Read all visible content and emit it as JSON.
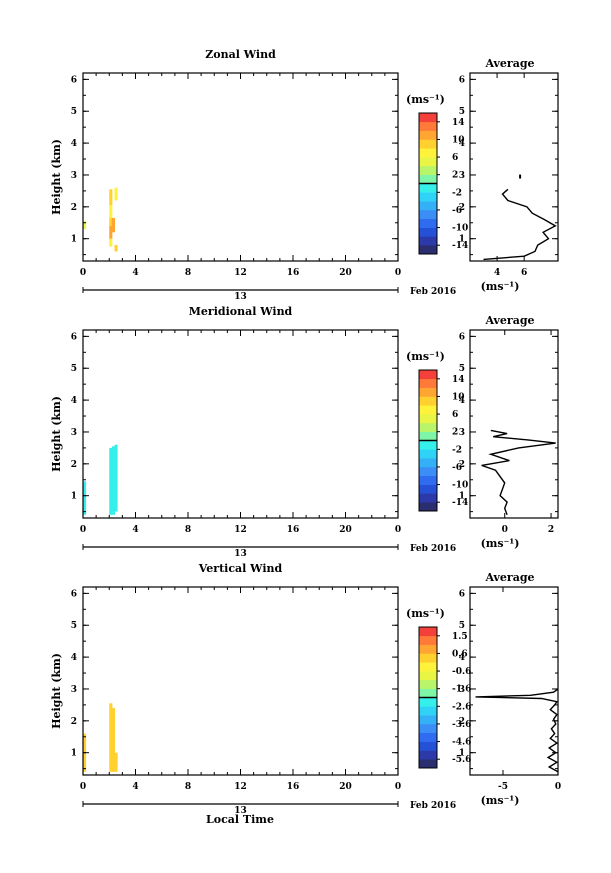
{
  "figure": {
    "date_label": "Feb 2016",
    "date_axis_tick": "13",
    "xlabel": "Local Time",
    "units_label": "(ms⁻¹)",
    "average_title": "Average"
  },
  "chart_data": [
    {
      "type": "heatmap",
      "title": "Zonal Wind",
      "ylabel": "Height (km)",
      "xlim": [
        0,
        24
      ],
      "ylim": [
        0.3,
        6.2
      ],
      "xticks": [
        "0",
        "4",
        "8",
        "12",
        "16",
        "20",
        "0"
      ],
      "yticks": [
        "1",
        "2",
        "3",
        "4",
        "5",
        "6"
      ],
      "colorbar": {
        "range": [
          -15,
          15
        ],
        "ticks": [
          "14",
          "10",
          "6",
          "2",
          "-2",
          "-6",
          "-10",
          "-14"
        ]
      },
      "cells": [
        {
          "x": 0.0,
          "y0": 1.3,
          "y1": 1.55,
          "v": 4
        },
        {
          "x": 2.0,
          "y0": 0.75,
          "y1": 1.0,
          "v": 7
        },
        {
          "x": 2.0,
          "y0": 1.0,
          "y1": 1.4,
          "v": 10
        },
        {
          "x": 2.0,
          "y0": 1.4,
          "y1": 1.65,
          "v": 9
        },
        {
          "x": 2.0,
          "y0": 1.65,
          "y1": 2.05,
          "v": 7
        },
        {
          "x": 2.0,
          "y0": 2.05,
          "y1": 2.55,
          "v": 8
        },
        {
          "x": 2.2,
          "y0": 1.2,
          "y1": 1.65,
          "v": 11
        },
        {
          "x": 2.4,
          "y0": 0.6,
          "y1": 0.8,
          "v": 9
        },
        {
          "x": 2.4,
          "y0": 2.2,
          "y1": 2.6,
          "v": 6
        }
      ],
      "average": {
        "xlim": [
          2,
          8.5
        ],
        "xticks": [
          "4",
          "6"
        ],
        "profile_height": [
          0.35,
          0.45,
          0.6,
          0.8,
          1.0,
          1.2,
          1.4,
          1.6,
          1.8,
          2.0,
          2.2,
          2.4,
          2.55
        ],
        "profile_value": [
          3.0,
          6.0,
          6.8,
          7.0,
          7.8,
          7.4,
          8.3,
          7.5,
          6.6,
          6.2,
          4.8,
          4.4,
          4.8
        ],
        "isolated_point": {
          "value": 5.7,
          "height": 2.95
        }
      }
    },
    {
      "type": "heatmap",
      "title": "Meridional Wind",
      "ylabel": "Height (km)",
      "xlim": [
        0,
        24
      ],
      "ylim": [
        0.3,
        6.2
      ],
      "xticks": [
        "0",
        "4",
        "8",
        "12",
        "16",
        "20",
        "0"
      ],
      "yticks": [
        "1",
        "2",
        "3",
        "4",
        "5",
        "6"
      ],
      "colorbar": {
        "range": [
          -15,
          15
        ],
        "ticks": [
          "14",
          "10",
          "6",
          "2",
          "-2",
          "-6",
          "-10",
          "-14"
        ]
      },
      "cells": [
        {
          "x": 0.0,
          "y0": 0.4,
          "y1": 1.45,
          "v": -1
        },
        {
          "x": 2.0,
          "y0": 0.4,
          "y1": 2.5,
          "v": -1
        },
        {
          "x": 2.2,
          "y0": 0.4,
          "y1": 2.55,
          "v": -1
        },
        {
          "x": 2.4,
          "y0": 0.5,
          "y1": 2.6,
          "v": -1
        }
      ],
      "average": {
        "xlim": [
          -1.5,
          2.3
        ],
        "xticks": [
          "0",
          "2"
        ],
        "profile_height": [
          0.4,
          0.6,
          0.8,
          1.0,
          1.2,
          1.4,
          1.6,
          1.8,
          1.95,
          2.1,
          2.3,
          2.5,
          2.65,
          2.75,
          2.85,
          2.95,
          3.05
        ],
        "profile_value": [
          0.1,
          0.0,
          0.1,
          -0.2,
          -0.1,
          0.0,
          -0.2,
          -0.4,
          -1.0,
          0.2,
          -0.6,
          0.6,
          2.2,
          1.0,
          -0.5,
          0.1,
          -0.6
        ]
      }
    },
    {
      "type": "heatmap",
      "title": "Vertical Wind",
      "ylabel": "Height (km)",
      "xlim": [
        0,
        24
      ],
      "ylim": [
        0.3,
        6.2
      ],
      "xticks": [
        "0",
        "4",
        "8",
        "12",
        "16",
        "20",
        "0"
      ],
      "yticks": [
        "1",
        "2",
        "3",
        "4",
        "5",
        "6"
      ],
      "colorbar": {
        "range": [
          -6,
          2
        ],
        "ticks": [
          "1.5",
          "0.6",
          "-0.6",
          "-1.6",
          "-2.6",
          "-3.6",
          "-4.6",
          "-5.6"
        ]
      },
      "cells": [
        {
          "x": 0.0,
          "y0": 0.4,
          "y1": 1.6,
          "v": 0.2
        },
        {
          "x": 2.0,
          "y0": 0.4,
          "y1": 2.55,
          "v": 0.4
        },
        {
          "x": 2.2,
          "y0": 0.4,
          "y1": 2.4,
          "v": 0.3
        },
        {
          "x": 2.4,
          "y0": 0.4,
          "y1": 1.0,
          "v": 0.4
        }
      ],
      "average": {
        "xlim": [
          -8,
          0
        ],
        "xticks": [
          "-5",
          "0"
        ],
        "profile_height": [
          0.4,
          0.55,
          0.7,
          0.85,
          1.0,
          1.15,
          1.3,
          1.45,
          1.6,
          1.75,
          1.9,
          2.05,
          2.2,
          2.35,
          2.5,
          2.6,
          2.7,
          2.75,
          2.8,
          2.9,
          3.0
        ],
        "profile_value": [
          0.0,
          -0.8,
          -0.1,
          -0.9,
          -0.2,
          -0.8,
          -0.1,
          -0.7,
          -0.3,
          -0.6,
          -0.2,
          -0.4,
          -0.1,
          -0.7,
          -0.3,
          -0.1,
          -1.5,
          -7.5,
          -2.5,
          -0.4,
          0.0
        ]
      }
    }
  ]
}
